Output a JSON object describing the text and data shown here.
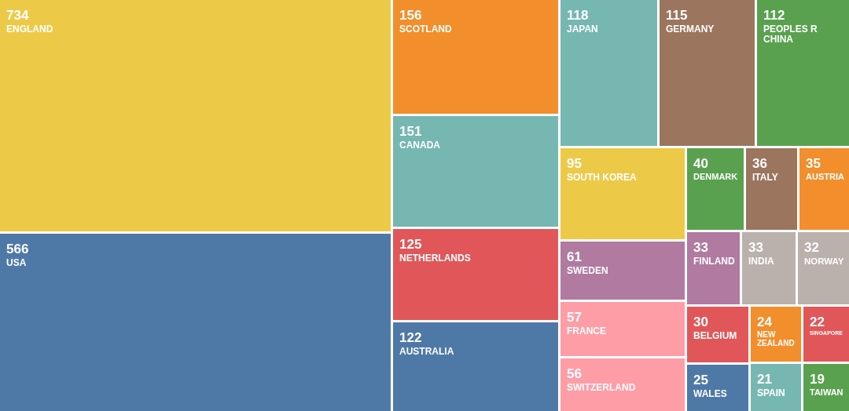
{
  "chart_data": {
    "type": "other",
    "categories": [
      "ENGLAND",
      "USA",
      "SCOTLAND",
      "CANADA",
      "NETHERLANDS",
      "AUSTRALIA",
      "JAPAN",
      "GERMANY",
      "PEOPLES R CHINA",
      "SOUTH KOREA",
      "SWEDEN",
      "FRANCE",
      "SWITZERLAND",
      "DENMARK",
      "ITALY",
      "AUSTRIA",
      "FINLAND",
      "INDIA",
      "NORWAY",
      "BELGIUM",
      "WALES",
      "NEW ZEALAND",
      "SINGAPORE",
      "SPAIN",
      "TAIWAN"
    ],
    "values": [
      734,
      566,
      156,
      151,
      125,
      122,
      118,
      115,
      112,
      95,
      61,
      57,
      56,
      40,
      36,
      35,
      33,
      33,
      32,
      30,
      25,
      24,
      22,
      21,
      19
    ],
    "colors": [
      "#edc948",
      "#4e79a7",
      "#f28e2b",
      "#76b7b2",
      "#e15759",
      "#4e79a7",
      "#76b7b2",
      "#9c755f",
      "#59a14f",
      "#edc948",
      "#b07aa1",
      "#ff9da7",
      "#ff9da7",
      "#59a14f",
      "#9c755f",
      "#f28e2b",
      "#b07aa1",
      "#bab0ac",
      "#bab0ac",
      "#e15759",
      "#4e79a7",
      "#f28e2b",
      "#e15759",
      "#76b7b2",
      "#59a14f"
    ],
    "data_labels": true
  }
}
